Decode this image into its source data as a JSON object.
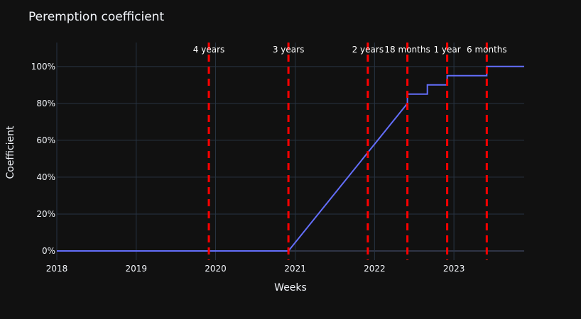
{
  "chart_data": {
    "type": "line",
    "title": "Peremption coefficient",
    "xlabel": "Weeks",
    "ylabel": "Coefficient",
    "x_ticks": [
      "2018",
      "2019",
      "2020",
      "2021",
      "2022",
      "2023"
    ],
    "y_ticks": [
      "0%",
      "20%",
      "40%",
      "60%",
      "80%",
      "100%"
    ],
    "xlim": [
      "2018-01-01",
      "2023-11-20"
    ],
    "ylim": [
      -0.05,
      1.13
    ],
    "grid": true,
    "line_color": "#636efa",
    "threshold_color": "#ff0000",
    "series": [
      {
        "x": [
          "2018-01-01",
          "2020-12-01",
          "2022-06-01",
          "2022-06-01",
          "2022-09-01",
          "2022-09-01",
          "2022-12-01",
          "2022-12-01",
          "2023-06-01",
          "2023-06-01",
          "2023-11-20"
        ],
        "y": [
          0,
          0,
          0.8,
          0.85,
          0.85,
          0.9,
          0.9,
          0.95,
          0.95,
          1.0,
          1.0
        ]
      }
    ],
    "thresholds": [
      {
        "x": "2019-12-01",
        "label": "4 years"
      },
      {
        "x": "2020-12-01",
        "label": "3 years"
      },
      {
        "x": "2021-12-01",
        "label": "2 years"
      },
      {
        "x": "2022-06-01",
        "label": "18 months"
      },
      {
        "x": "2022-12-01",
        "label": "1 year"
      },
      {
        "x": "2023-06-01",
        "label": "6 months"
      }
    ]
  }
}
